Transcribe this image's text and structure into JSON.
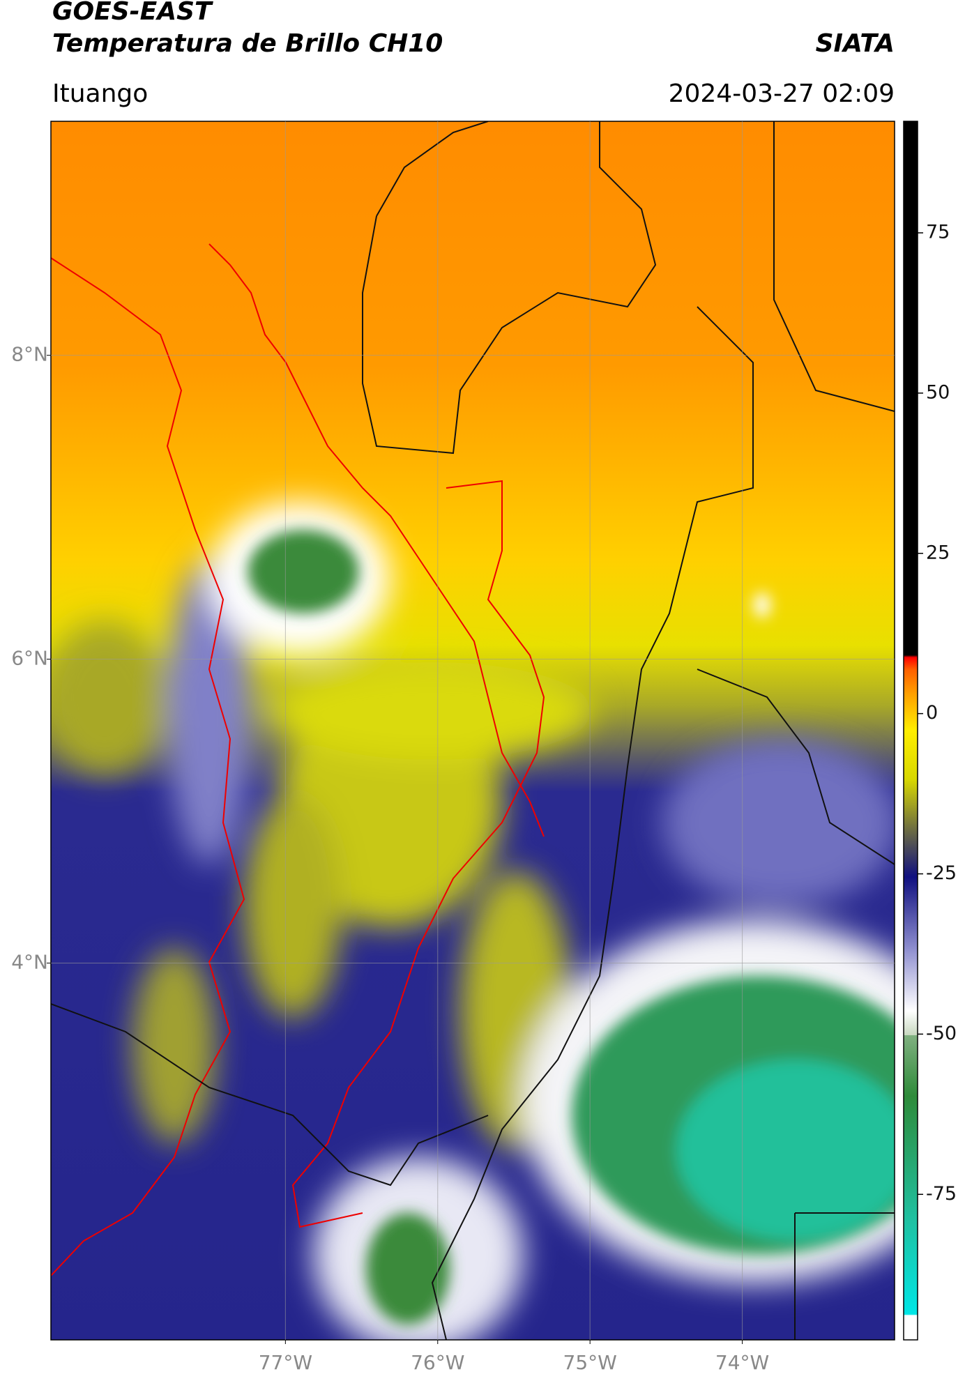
{
  "header": {
    "satellite": "GOES-EAST",
    "product": "Temperatura de Brillo CH10",
    "agency": "SIATA",
    "location": "Ituango",
    "datetime": "2024-03-27 02:09"
  },
  "chart_data": {
    "type": "map",
    "xlim": [
      -78.54,
      -73.0
    ],
    "ylim": [
      1.52,
      9.54
    ],
    "xticks": [
      {
        "value": -77,
        "label": "77°W"
      },
      {
        "value": -76,
        "label": "76°W"
      },
      {
        "value": -75,
        "label": "75°W"
      },
      {
        "value": -74,
        "label": "74°W"
      }
    ],
    "yticks": [
      {
        "value": 4,
        "label": "4°N"
      },
      {
        "value": 6,
        "label": "6°N"
      },
      {
        "value": 8,
        "label": "8°N"
      }
    ],
    "grid": true,
    "colorbar": {
      "clim": [
        -97.7,
        92.4
      ],
      "ticks": [
        -75,
        -50,
        -25,
        0,
        25,
        50,
        75
      ]
    }
  }
}
